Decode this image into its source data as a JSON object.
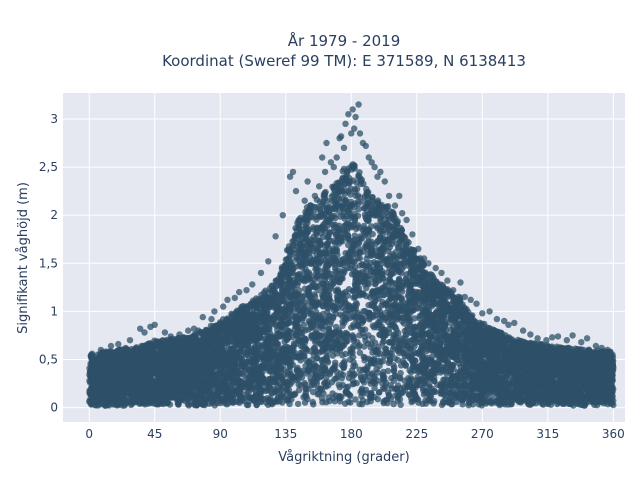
{
  "chart_data": {
    "type": "scatter",
    "title_line1": "År 1979 - 2019",
    "title_line2": "Koordinat (Sweref 99 TM): E 371589, N 6138413",
    "xlabel": "Vågriktning (grader)",
    "ylabel": "Signifikant våghöjd (m)",
    "xlim": [
      -18,
      368
    ],
    "ylim": [
      -0.15,
      3.27
    ],
    "x_ticks": [
      0,
      45,
      90,
      135,
      180,
      225,
      270,
      315,
      360
    ],
    "x_tick_labels": [
      "0",
      "45",
      "90",
      "135",
      "180",
      "225",
      "270",
      "315",
      "360"
    ],
    "y_ticks": [
      0,
      0.5,
      1,
      1.5,
      2,
      2.5,
      3
    ],
    "y_tick_labels": [
      "0",
      "0,5",
      "1",
      "1,5",
      "2",
      "2,5",
      "3"
    ],
    "grid": true,
    "legend": "none",
    "marker_color": "#2e5068",
    "plot_background": "#e5e8f0",
    "envelope_note": "upper envelope of point cloud",
    "envelope": {
      "x": [
        0,
        10,
        20,
        30,
        40,
        45,
        60,
        70,
        80,
        90,
        100,
        110,
        120,
        130,
        135,
        140,
        145,
        150,
        155,
        160,
        165,
        170,
        175,
        180,
        185,
        190,
        195,
        200,
        205,
        210,
        215,
        220,
        225,
        230,
        240,
        250,
        255,
        260,
        270,
        280,
        290,
        300,
        315,
        330,
        345,
        360
      ],
      "y": [
        0.55,
        0.58,
        0.6,
        0.62,
        0.66,
        0.7,
        0.72,
        0.74,
        0.82,
        0.9,
        1.0,
        1.1,
        1.2,
        1.35,
        1.6,
        1.8,
        2.0,
        2.1,
        2.15,
        2.2,
        2.3,
        2.35,
        2.5,
        2.6,
        2.5,
        2.3,
        2.2,
        2.15,
        2.1,
        2.0,
        1.85,
        1.7,
        1.6,
        1.5,
        1.3,
        1.2,
        1.15,
        1.0,
        0.9,
        0.8,
        0.72,
        0.68,
        0.65,
        0.62,
        0.6,
        0.58
      ]
    },
    "outliers": {
      "x": [
        2,
        8,
        15,
        20,
        25,
        28,
        35,
        38,
        42,
        45,
        52,
        56,
        62,
        68,
        72,
        75,
        78,
        84,
        86,
        92,
        95,
        100,
        103,
        108,
        112,
        118,
        123,
        128,
        133,
        138,
        140,
        142,
        148,
        150,
        152,
        155,
        158,
        160,
        162,
        163,
        166,
        168,
        170,
        172,
        173,
        175,
        176,
        178,
        180,
        181,
        182,
        183,
        185,
        186,
        188,
        190,
        192,
        194,
        196,
        198,
        200,
        203,
        206,
        210,
        213,
        215,
        218,
        222,
        226,
        230,
        233,
        238,
        242,
        246,
        250,
        255,
        258,
        262,
        266,
        270,
        275,
        280,
        285,
        288,
        292,
        298,
        303,
        308,
        314,
        318,
        322,
        328,
        332,
        338,
        342,
        348,
        352,
        356,
        358
      ],
      "y": [
        0.56,
        0.6,
        0.64,
        0.66,
        0.62,
        0.7,
        0.82,
        0.78,
        0.84,
        0.86,
        0.78,
        0.74,
        0.76,
        0.8,
        0.82,
        0.8,
        0.94,
        0.92,
        1.0,
        1.05,
        1.12,
        1.14,
        1.2,
        1.22,
        1.28,
        1.4,
        1.52,
        1.78,
        2.0,
        2.4,
        2.45,
        2.25,
        2.15,
        2.35,
        2.1,
        2.2,
        2.3,
        2.6,
        2.45,
        2.75,
        2.55,
        2.5,
        2.6,
        2.8,
        2.82,
        2.7,
        2.95,
        3.05,
        2.85,
        3.1,
        2.9,
        3.02,
        3.15,
        2.85,
        2.75,
        2.72,
        2.6,
        2.55,
        2.5,
        2.4,
        2.45,
        2.35,
        2.2,
        2.1,
        2.2,
        2.02,
        1.95,
        1.8,
        1.65,
        1.55,
        1.5,
        1.45,
        1.4,
        1.32,
        1.22,
        1.3,
        1.15,
        1.12,
        1.08,
        0.98,
        1.0,
        0.92,
        0.9,
        0.86,
        0.88,
        0.8,
        0.76,
        0.72,
        0.7,
        0.73,
        0.74,
        0.7,
        0.75,
        0.68,
        0.72,
        0.64,
        0.62,
        0.6,
        0.58
      ]
    }
  }
}
